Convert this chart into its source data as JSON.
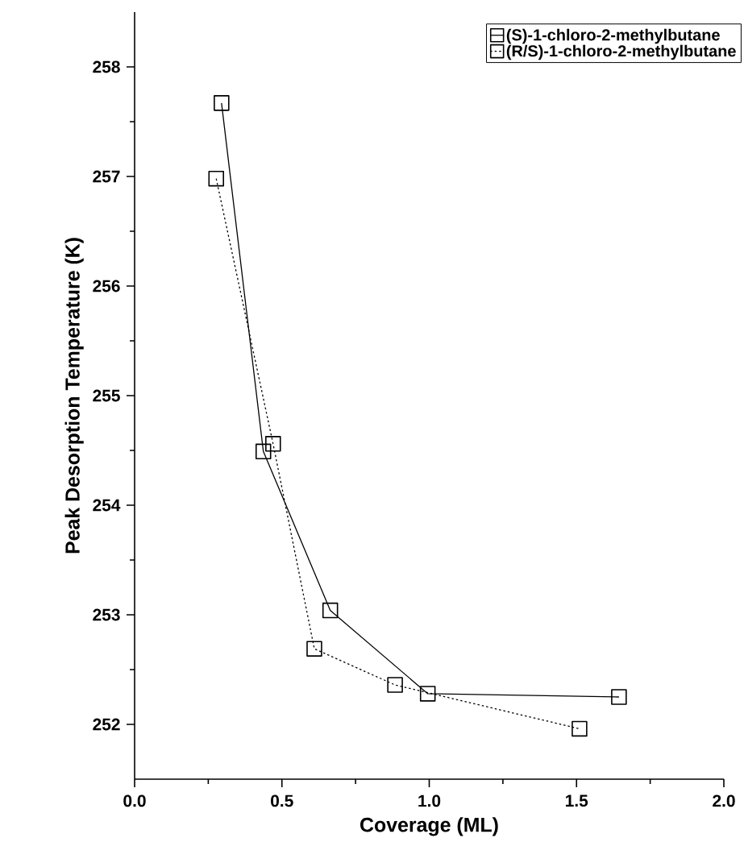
{
  "chart_data": {
    "type": "line",
    "xlabel": "Coverage (ML)",
    "ylabel": "Peak Desorption Temperature (K)",
    "series": [
      {
        "name": "(S)-1-chloro-2-methylbutane",
        "color": "#000000",
        "line_style": "solid",
        "x": [
          0.295,
          0.437,
          0.664,
          0.995,
          1.644
        ],
        "values": [
          257.67,
          254.49,
          253.04,
          252.28,
          252.25
        ]
      },
      {
        "name": "(R/S)-1-chloro-2-methylbutane",
        "color": "#000000",
        "line_style": "dotted",
        "x": [
          0.277,
          0.47,
          0.61,
          0.884,
          1.51
        ],
        "values": [
          256.98,
          254.56,
          252.69,
          252.36,
          251.96
        ]
      }
    ],
    "xlim": [
      0,
      2
    ],
    "ylim": [
      251.5,
      258.5
    ],
    "xticks": [
      {
        "value": 0,
        "label": "0.0"
      },
      {
        "value": 0.5,
        "label": "0.5"
      },
      {
        "value": 1,
        "label": "1.0"
      },
      {
        "value": 1.5,
        "label": "1.5"
      },
      {
        "value": 2,
        "label": "2.0"
      }
    ],
    "yticks": [
      252,
      253,
      254,
      255,
      256,
      257,
      258
    ],
    "marker": "square",
    "legend": "top right",
    "grid": false
  }
}
